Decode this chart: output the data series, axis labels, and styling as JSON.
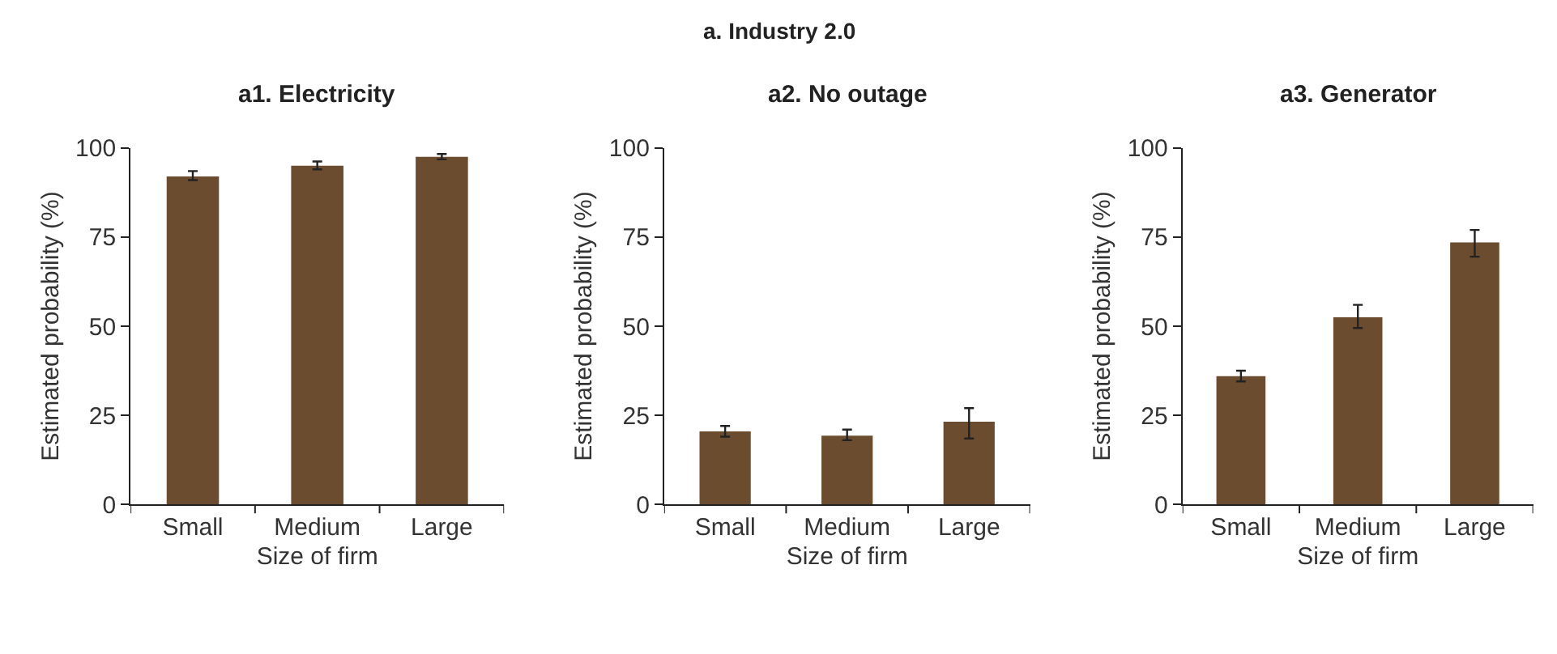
{
  "chart_data": [
    {
      "type": "bar",
      "title": "a1. Electricity",
      "annotations": [
        "a. Industry 2.0"
      ],
      "xlabel": "Size of firm",
      "ylabel": "Estimated probability (%)",
      "categories": [
        "Small",
        "Medium",
        "Large"
      ],
      "values": [
        92,
        95,
        97.5
      ],
      "errors": [
        [
          91,
          93.5
        ],
        [
          94,
          96.2
        ],
        [
          96.8,
          98.3
        ]
      ],
      "color": "#6b4c2e",
      "ylim": [
        0,
        100
      ],
      "yticks": [
        0,
        25,
        50,
        75,
        100
      ]
    },
    {
      "type": "bar",
      "title": "a2. No outage",
      "xlabel": "Size of firm",
      "ylabel": "Estimated probability (%)",
      "categories": [
        "Small",
        "Medium",
        "Large"
      ],
      "values": [
        20.5,
        19.3,
        23.2
      ],
      "errors": [
        [
          19,
          22
        ],
        [
          18,
          21
        ],
        [
          18.5,
          27
        ]
      ],
      "color": "#6b4c2e",
      "ylim": [
        0,
        100
      ],
      "yticks": [
        0,
        25,
        50,
        75,
        100
      ]
    },
    {
      "type": "bar",
      "title": "a3. Generator",
      "xlabel": "Size of firm",
      "ylabel": "Estimated probability (%)",
      "categories": [
        "Small",
        "Medium",
        "Large"
      ],
      "values": [
        36,
        52.5,
        73.5
      ],
      "errors": [
        [
          34.5,
          37.5
        ],
        [
          49.5,
          56
        ],
        [
          69.5,
          77
        ]
      ],
      "color": "#6b4c2e",
      "ylim": [
        0,
        100
      ],
      "yticks": [
        0,
        25,
        50,
        75,
        100
      ]
    }
  ]
}
